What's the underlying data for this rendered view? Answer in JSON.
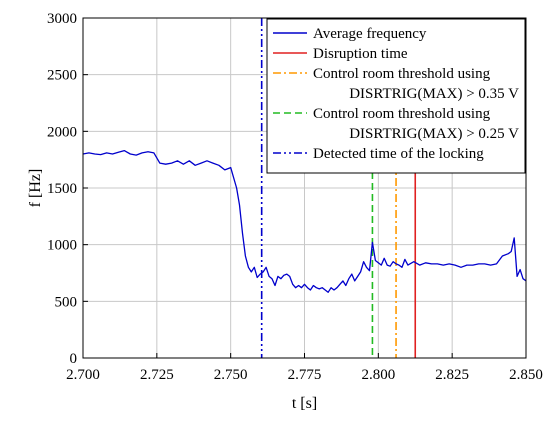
{
  "chart_data": {
    "type": "line",
    "title": "",
    "xlabel": "t [s]",
    "ylabel": "f [Hz]",
    "xlim": [
      2.7,
      2.85
    ],
    "ylim": [
      0,
      3000
    ],
    "xticks": [
      2.7,
      2.725,
      2.75,
      2.775,
      2.8,
      2.825,
      2.85
    ],
    "xtick_labels": [
      "2.700",
      "2.725",
      "2.750",
      "2.775",
      "2.800",
      "2.825",
      "2.850"
    ],
    "yticks": [
      0,
      500,
      1000,
      1500,
      2000,
      2500,
      3000
    ],
    "ytick_labels": [
      "0",
      "500",
      "1000",
      "1500",
      "2000",
      "2500",
      "3000"
    ],
    "grid": true,
    "legend_position": "top-right",
    "series": [
      {
        "name": "Average frequency",
        "color": "#0000cc",
        "x": [
          2.7,
          2.702,
          2.704,
          2.706,
          2.708,
          2.71,
          2.712,
          2.714,
          2.716,
          2.718,
          2.72,
          2.722,
          2.724,
          2.726,
          2.728,
          2.73,
          2.732,
          2.734,
          2.736,
          2.738,
          2.74,
          2.742,
          2.744,
          2.746,
          2.748,
          2.75,
          2.752,
          2.753,
          2.754,
          2.755,
          2.756,
          2.757,
          2.758,
          2.759,
          2.76,
          2.761,
          2.762,
          2.763,
          2.764,
          2.765,
          2.766,
          2.767,
          2.768,
          2.769,
          2.77,
          2.771,
          2.772,
          2.773,
          2.774,
          2.775,
          2.776,
          2.777,
          2.778,
          2.779,
          2.78,
          2.781,
          2.782,
          2.783,
          2.784,
          2.785,
          2.786,
          2.787,
          2.788,
          2.789,
          2.79,
          2.791,
          2.792,
          2.793,
          2.794,
          2.795,
          2.796,
          2.797,
          2.798,
          2.799,
          2.8,
          2.801,
          2.802,
          2.803,
          2.804,
          2.805,
          2.806,
          2.807,
          2.808,
          2.809,
          2.81,
          2.812,
          2.814,
          2.816,
          2.818,
          2.82,
          2.822,
          2.824,
          2.826,
          2.828,
          2.83,
          2.832,
          2.834,
          2.836,
          2.838,
          2.84,
          2.842,
          2.844,
          2.845,
          2.846,
          2.847,
          2.848,
          2.849,
          2.85
        ],
        "y": [
          1800,
          1810,
          1800,
          1795,
          1810,
          1800,
          1815,
          1830,
          1800,
          1790,
          1810,
          1820,
          1810,
          1720,
          1710,
          1720,
          1740,
          1710,
          1740,
          1700,
          1720,
          1740,
          1720,
          1700,
          1660,
          1680,
          1500,
          1350,
          1100,
          900,
          800,
          760,
          800,
          710,
          740,
          760,
          800,
          720,
          700,
          640,
          720,
          700,
          730,
          740,
          720,
          650,
          620,
          640,
          620,
          650,
          620,
          600,
          640,
          620,
          610,
          620,
          600,
          580,
          620,
          600,
          620,
          650,
          680,
          640,
          700,
          740,
          680,
          720,
          760,
          850,
          800,
          770,
          1020,
          860,
          840,
          820,
          880,
          820,
          810,
          850,
          830,
          820,
          800,
          870,
          820,
          850,
          820,
          840,
          830,
          830,
          820,
          830,
          820,
          800,
          820,
          820,
          830,
          830,
          820,
          830,
          900,
          920,
          940,
          1060,
          720,
          780,
          700,
          680
        ]
      }
    ],
    "vlines": [
      {
        "name": "Disruption time",
        "x": 2.8125,
        "color": "#e02020",
        "dash": "solid"
      },
      {
        "name": "Control room threshold using DISRTRIG(MAX) > 0.35 V",
        "x": 2.806,
        "color": "#ff9900",
        "dash": "dashdot"
      },
      {
        "name": "Control room threshold using DISRTRIG(MAX) > 0.25 V",
        "x": 2.798,
        "color": "#22bb22",
        "dash": "dash"
      },
      {
        "name": "Detected time of the locking",
        "x": 2.7605,
        "color": "#0000cc",
        "dash": "dashdotdot"
      }
    ],
    "legend": [
      {
        "lines": [
          "Average frequency"
        ],
        "color": "#0000cc",
        "dash": "solid"
      },
      {
        "lines": [
          "Disruption time"
        ],
        "color": "#e02020",
        "dash": "solid"
      },
      {
        "lines": [
          "Control room threshold using",
          "DISRTRIG(MAX) > 0.35 V"
        ],
        "color": "#ff9900",
        "dash": "dashdot"
      },
      {
        "lines": [
          "Control room threshold using",
          "DISRTRIG(MAX) > 0.25 V"
        ],
        "color": "#22bb22",
        "dash": "dash"
      },
      {
        "lines": [
          "Detected time of the locking"
        ],
        "color": "#0000cc",
        "dash": "dashdotdot"
      }
    ]
  }
}
